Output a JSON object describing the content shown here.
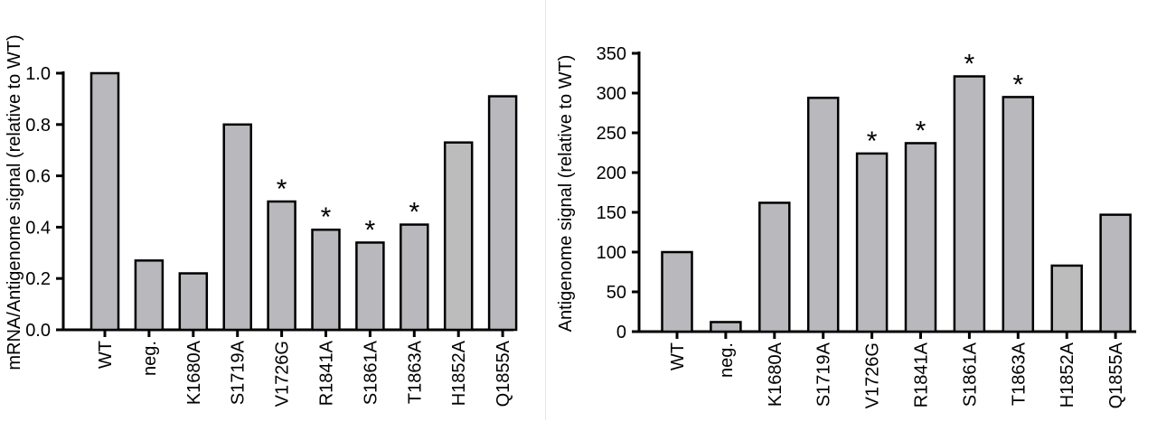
{
  "colors": {
    "bar_fill": "#b9b9bd",
    "bar_fill_alt": "#bcbcbc",
    "bar_stroke": "#000000",
    "axis": "#000000"
  },
  "chart_data": [
    {
      "type": "bar",
      "ylabel": "mRNA/Antigenome signal (relative to WT)",
      "ylim": [
        0,
        1.0
      ],
      "yticks": [
        "0.0",
        "0.2",
        "0.4",
        "0.6",
        "0.8",
        "1.0"
      ],
      "categories": [
        "WT",
        "neg.",
        "K1680A",
        "S1719A",
        "V1726G",
        "R1841A",
        "S1861A",
        "T1863A",
        "H1852A",
        "Q1855A"
      ],
      "values": [
        1.0,
        0.27,
        0.22,
        0.8,
        0.5,
        0.39,
        0.34,
        0.41,
        0.73,
        0.91
      ],
      "significance": [
        "",
        "",
        "",
        "",
        "*",
        "*",
        "*",
        "*",
        "",
        ""
      ]
    },
    {
      "type": "bar",
      "ylabel": "Antigenome signal (relative to WT)",
      "ylim": [
        0,
        350
      ],
      "yticks": [
        "0",
        "50",
        "100",
        "150",
        "200",
        "250",
        "300",
        "350"
      ],
      "categories": [
        "WT",
        "neg.",
        "K1680A",
        "S1719A",
        "V1726G",
        "R1841A",
        "S1861A",
        "T1863A",
        "H1852A",
        "Q1855A"
      ],
      "values": [
        100,
        12,
        162,
        294,
        224,
        237,
        321,
        295,
        83,
        147
      ],
      "significance": [
        "",
        "",
        "",
        "",
        "*",
        "*",
        "*",
        "*",
        "",
        ""
      ]
    }
  ]
}
